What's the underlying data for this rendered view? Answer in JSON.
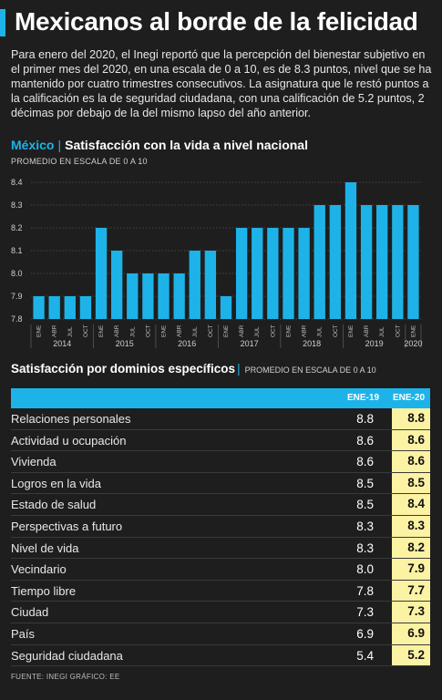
{
  "title": "Mexicanos al borde de la felicidad",
  "intro": "Para enero del 2020, el Inegi reportó que la percepción del bienestar subjetivo en el primer mes del 2020, en una escala de 0 a 10, es de 8.3 puntos, nivel que se ha mantenido por cuatro trimestres consecutivos. La asignatura que le restó puntos a la calificación es la de seguridad ciudadana, con una calificación de 5.2 puntos, 2 décimas por debajo de la del mismo lapso del año anterior.",
  "chart_section": {
    "country": "México",
    "title": "Satisfacción con la vida a nivel nacional",
    "subtitle": "PROMEDIO EN ESCALA DE 0 A 10"
  },
  "chart_data": {
    "type": "bar",
    "categories": [
      "ENE",
      "ABR",
      "JUL",
      "OCT",
      "ENE",
      "ABR",
      "JUL",
      "OCT",
      "ENE",
      "ABR",
      "JUL",
      "OCT",
      "ENE",
      "ABR",
      "JUL",
      "OCT",
      "ENE",
      "ABR",
      "JUL",
      "OCT",
      "ENE",
      "ABR",
      "JUL",
      "OCT",
      "ENE"
    ],
    "years": [
      "2014",
      "2015",
      "2016",
      "2017",
      "2018",
      "2019",
      "2020"
    ],
    "values": [
      7.9,
      7.9,
      7.9,
      7.9,
      8.2,
      8.1,
      8.0,
      8.0,
      8.0,
      8.0,
      8.1,
      8.1,
      7.9,
      8.2,
      8.2,
      8.2,
      8.2,
      8.2,
      8.3,
      8.3,
      8.4,
      8.3,
      8.3,
      8.3,
      8.3
    ],
    "ylim": [
      7.8,
      8.4
    ],
    "yticks": [
      "7.8",
      "7.9",
      "8.0",
      "8.1",
      "8.2",
      "8.3",
      "8.4"
    ],
    "grid": true
  },
  "table_section": {
    "title": "Satisfacción por dominios específicos",
    "subtitle": "PROMEDIO EN ESCALA DE 0 A 10",
    "col1": "ENE-19",
    "col2": "ENE-20",
    "rows": [
      {
        "label": "Relaciones personales",
        "v19": "8.8",
        "v20": "8.8"
      },
      {
        "label": "Actividad u ocupación",
        "v19": "8.6",
        "v20": "8.6"
      },
      {
        "label": "Vivienda",
        "v19": "8.6",
        "v20": "8.6"
      },
      {
        "label": "Logros en la vida",
        "v19": "8.5",
        "v20": "8.5"
      },
      {
        "label": "Estado de salud",
        "v19": "8.5",
        "v20": "8.4"
      },
      {
        "label": "Perspectivas a futuro",
        "v19": "8.3",
        "v20": "8.3"
      },
      {
        "label": "Nivel de vida",
        "v19": "8.3",
        "v20": "8.2"
      },
      {
        "label": "Vecindario",
        "v19": "8.0",
        "v20": "7.9"
      },
      {
        "label": "Tiempo libre",
        "v19": "7.8",
        "v20": "7.7"
      },
      {
        "label": "Ciudad",
        "v19": "7.3",
        "v20": "7.3"
      },
      {
        "label": "País",
        "v19": "6.9",
        "v20": "6.9"
      },
      {
        "label": "Seguridad ciudadana",
        "v19": "5.4",
        "v20": "5.2"
      }
    ]
  },
  "source": "FUENTE: INEGI   GRÁFICO: EE",
  "colors": {
    "accent": "#1db3e8",
    "highlight": "#fbf2a3",
    "background": "#1e1e1e"
  }
}
